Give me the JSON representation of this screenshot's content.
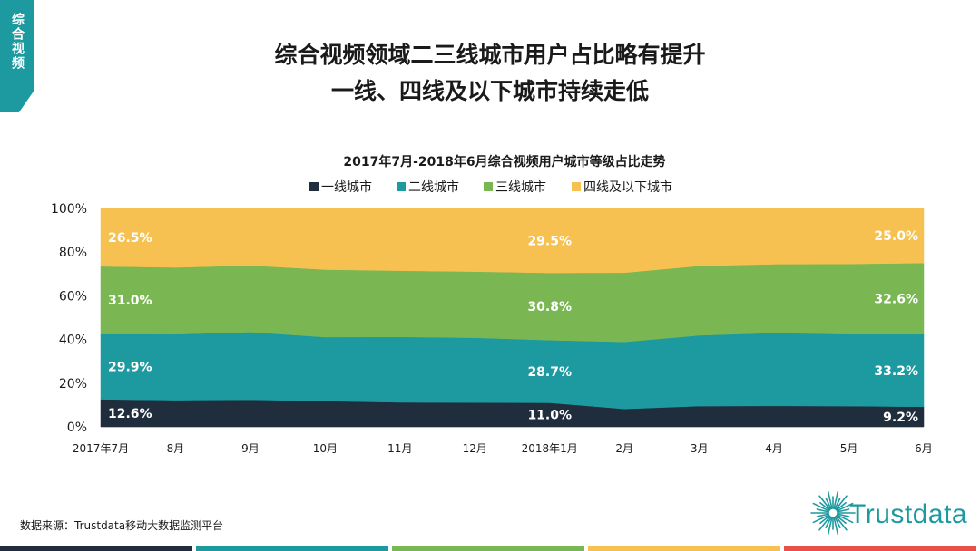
{
  "side_tab": {
    "label": "综合视频"
  },
  "header": {
    "title_line1": "综合视频领域二三线城市用户占比略有提升",
    "title_line2": "一线、四线及以下城市持续走低"
  },
  "chart_data": {
    "type": "area",
    "stacked": true,
    "title": "2017年7月-2018年6月综合视频用户城市等级占比走势",
    "legend_position": "top",
    "categories": [
      "2017年7月",
      "8月",
      "9月",
      "10月",
      "11月",
      "12月",
      "2018年1月",
      "2月",
      "3月",
      "4月",
      "5月",
      "6月"
    ],
    "y_ticks": [
      "0%",
      "20%",
      "40%",
      "60%",
      "80%",
      "100%"
    ],
    "ylim": [
      0,
      100
    ],
    "grid": false,
    "series": [
      {
        "name": "一线城市",
        "color": "#1f2d3d",
        "values": [
          12.6,
          12.2,
          12.4,
          11.8,
          11.2,
          11.1,
          11.0,
          8.2,
          9.5,
          9.6,
          9.5,
          9.2
        ]
      },
      {
        "name": "二线城市",
        "color": "#1d9aa0",
        "values": [
          29.9,
          30.2,
          31.0,
          29.3,
          30.0,
          29.7,
          28.7,
          30.7,
          32.4,
          33.4,
          32.9,
          33.2
        ]
      },
      {
        "name": "三线城市",
        "color": "#7ab753",
        "values": [
          31.0,
          30.6,
          30.5,
          30.9,
          30.3,
          30.3,
          30.8,
          31.7,
          31.8,
          31.5,
          32.2,
          32.6
        ]
      },
      {
        "name": "四线及以下城市",
        "color": "#f7c151",
        "values": [
          26.5,
          27.0,
          26.1,
          28.0,
          28.5,
          28.9,
          29.5,
          29.4,
          26.3,
          25.5,
          25.4,
          25.0
        ]
      }
    ],
    "data_labels": [
      {
        "series": 0,
        "index": 0,
        "text": "12.6%"
      },
      {
        "series": 1,
        "index": 0,
        "text": "29.9%"
      },
      {
        "series": 2,
        "index": 0,
        "text": "31.0%"
      },
      {
        "series": 3,
        "index": 0,
        "text": "26.5%"
      },
      {
        "series": 0,
        "index": 6,
        "text": "11.0%"
      },
      {
        "series": 1,
        "index": 6,
        "text": "28.7%"
      },
      {
        "series": 2,
        "index": 6,
        "text": "30.8%"
      },
      {
        "series": 3,
        "index": 6,
        "text": "29.5%"
      },
      {
        "series": 0,
        "index": 11,
        "text": "9.2%"
      },
      {
        "series": 1,
        "index": 11,
        "text": "33.2%"
      },
      {
        "series": 2,
        "index": 11,
        "text": "32.6%"
      },
      {
        "series": 3,
        "index": 11,
        "text": "25.0%"
      }
    ]
  },
  "footer": {
    "source": "数据来源：Trustdata移动大数据监测平台",
    "logo_text": "Trustdata",
    "logo_color": "#1d9aa0",
    "bar_colors": [
      "#1f2d3d",
      "#1d9aa0",
      "#7ab753",
      "#f7c151",
      "#e8504a"
    ]
  }
}
